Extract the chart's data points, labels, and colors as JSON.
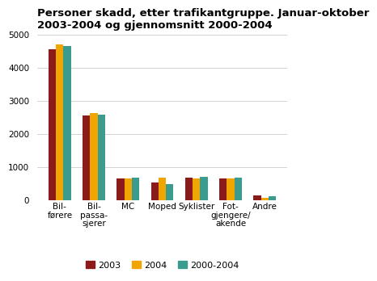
{
  "title": "Personer skadd, etter trafikantgruppe. Januar-oktober\n2003-2004 og gjennomsnitt 2000-2004",
  "categories": [
    "Bil-\nførere",
    "Bil-\npassa-\nsjerer",
    "MC",
    "Moped",
    "Syklister",
    "Fot-\ngjengere/\nakende",
    "Andre"
  ],
  "series": {
    "2003": [
      4550,
      2560,
      640,
      540,
      670,
      640,
      130
    ],
    "2004": [
      4700,
      2640,
      640,
      670,
      660,
      640,
      70
    ],
    "2000-2004": [
      4660,
      2590,
      670,
      490,
      690,
      670,
      110
    ]
  },
  "colors": {
    "2003": "#8B1A1A",
    "2004": "#F0A500",
    "2000-2004": "#3A9B8E"
  },
  "ylim": [
    0,
    5000
  ],
  "yticks": [
    0,
    1000,
    2000,
    3000,
    4000,
    5000
  ],
  "bar_width": 0.22,
  "background_color": "#ffffff",
  "grid_color": "#cccccc",
  "title_fontsize": 9.5,
  "tick_fontsize": 7.5,
  "legend_fontsize": 8
}
